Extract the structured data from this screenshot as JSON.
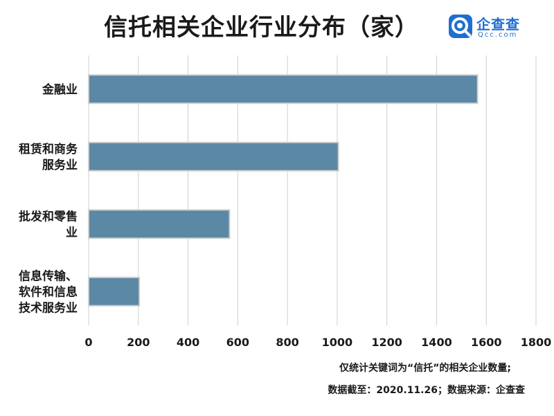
{
  "title": "信托相关企业行业分布（家）",
  "logo": {
    "name_cn": "企查查",
    "name_en": "Qcc.com"
  },
  "footnotes": {
    "line1": "仅统计关键词为“信托”的相关企业数量;",
    "line2": "数据截至：2020.11.26；数据来源：企查查"
  },
  "colors": {
    "bar": "#5b88a4",
    "bar_outline": "#d0d0d0",
    "grid": "#cfcfcf",
    "logo": "#1f6fd1"
  },
  "chart_data": {
    "type": "bar",
    "orientation": "horizontal",
    "title": "信托相关企业行业分布（家）",
    "categories": [
      [
        "金融业"
      ],
      [
        "租赁和商务",
        "服务业"
      ],
      [
        "批发和零售",
        "业"
      ],
      [
        "信息传输、",
        "软件和信息",
        "技术服务业"
      ]
    ],
    "values": [
      1565,
      1005,
      567,
      204
    ],
    "xlim": [
      0,
      1800
    ],
    "xticks": [
      "0",
      "200",
      "400",
      "600",
      "800",
      "1000",
      "1200",
      "1400",
      "1600",
      "1800"
    ],
    "grid": true,
    "legend": "none"
  }
}
